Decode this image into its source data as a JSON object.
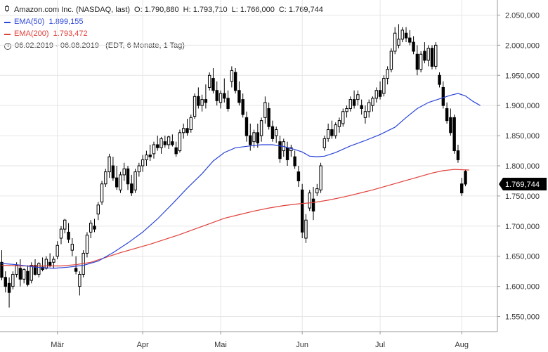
{
  "header": {
    "title": "Amazon.com Inc. (NASDAQ, last)",
    "ohlc": [
      {
        "label": "O:",
        "value": "1.790,880"
      },
      {
        "label": "H:",
        "value": "1.793,710"
      },
      {
        "label": "L:",
        "value": "1.766,000"
      },
      {
        "label": "C:",
        "value": "1.769,744"
      }
    ],
    "ema50_label": "EMA(50)",
    "ema50_value": "1.899,155",
    "ema200_label": "EMA(200)",
    "ema200_value": "1.793,472",
    "range": "06.02.2019 - 06.08.2019",
    "range_note": "(EDT, 6 Monate, 1 Tag)"
  },
  "colors": {
    "ema50": "#2b45d8",
    "ema200": "#e0403a",
    "candle": "#000000",
    "grid": "#e6e6e6",
    "last_price_tag": "#000000"
  },
  "chart_data": {
    "type": "candlestick",
    "title": "Amazon.com Inc. (NASDAQ, last)",
    "ylim": [
      1525,
      2075
    ],
    "y_ticks": [
      {
        "value": 1550,
        "label": "1.550,000"
      },
      {
        "value": 1600,
        "label": "1.600,000"
      },
      {
        "value": 1650,
        "label": "1.650,000"
      },
      {
        "value": 1700,
        "label": "1.700,000"
      },
      {
        "value": 1750,
        "label": "1.750,000"
      },
      {
        "value": 1800,
        "label": "1.800,000"
      },
      {
        "value": 1850,
        "label": "1.850,000"
      },
      {
        "value": 1900,
        "label": "1.900,000"
      },
      {
        "value": 1950,
        "label": "1.950,000"
      },
      {
        "value": 2000,
        "label": "2.000,000"
      },
      {
        "value": 2050,
        "label": "2.050,000"
      }
    ],
    "x_ticks": [
      {
        "index": 15,
        "label": "Mär"
      },
      {
        "index": 38,
        "label": "Apr"
      },
      {
        "index": 59,
        "label": "Mai"
      },
      {
        "index": 81,
        "label": "Jun"
      },
      {
        "index": 102,
        "label": "Jul"
      },
      {
        "index": 124,
        "label": "Aug"
      }
    ],
    "last_price": {
      "value": 1769.744,
      "label": "1.769,744"
    },
    "candles": [
      [
        1640,
        1660,
        1610,
        1615
      ],
      [
        1615,
        1625,
        1590,
        1600
      ],
      [
        1605,
        1615,
        1565,
        1590
      ],
      [
        1600,
        1625,
        1595,
        1620
      ],
      [
        1620,
        1640,
        1615,
        1635
      ],
      [
        1630,
        1645,
        1600,
        1612
      ],
      [
        1612,
        1630,
        1605,
        1628
      ],
      [
        1625,
        1635,
        1600,
        1603
      ],
      [
        1610,
        1640,
        1605,
        1635
      ],
      [
        1635,
        1645,
        1618,
        1620
      ],
      [
        1620,
        1640,
        1615,
        1638
      ],
      [
        1632,
        1648,
        1625,
        1628
      ],
      [
        1630,
        1650,
        1628,
        1645
      ],
      [
        1640,
        1655,
        1632,
        1635
      ],
      [
        1640,
        1650,
        1630,
        1645
      ],
      [
        1650,
        1675,
        1645,
        1668
      ],
      [
        1680,
        1700,
        1670,
        1695
      ],
      [
        1695,
        1712,
        1688,
        1710
      ],
      [
        1690,
        1705,
        1672,
        1678
      ],
      [
        1660,
        1680,
        1650,
        1670
      ],
      [
        1630,
        1650,
        1620,
        1625
      ],
      [
        1600,
        1625,
        1585,
        1620
      ],
      [
        1620,
        1660,
        1615,
        1655
      ],
      [
        1655,
        1690,
        1648,
        1685
      ],
      [
        1690,
        1710,
        1680,
        1705
      ],
      [
        1700,
        1712,
        1690,
        1695
      ],
      [
        1720,
        1740,
        1710,
        1735
      ],
      [
        1740,
        1775,
        1735,
        1770
      ],
      [
        1770,
        1795,
        1765,
        1790
      ],
      [
        1790,
        1820,
        1780,
        1815
      ],
      [
        1800,
        1815,
        1775,
        1780
      ],
      [
        1780,
        1800,
        1760,
        1765
      ],
      [
        1760,
        1790,
        1755,
        1785
      ],
      [
        1785,
        1805,
        1775,
        1795
      ],
      [
        1795,
        1800,
        1760,
        1770
      ],
      [
        1770,
        1785,
        1750,
        1755
      ],
      [
        1760,
        1795,
        1755,
        1790
      ],
      [
        1790,
        1805,
        1782,
        1800
      ],
      [
        1800,
        1818,
        1790,
        1810
      ],
      [
        1810,
        1825,
        1800,
        1818
      ],
      [
        1818,
        1835,
        1808,
        1815
      ],
      [
        1820,
        1840,
        1812,
        1835
      ],
      [
        1835,
        1850,
        1825,
        1830
      ],
      [
        1830,
        1848,
        1820,
        1845
      ],
      [
        1840,
        1850,
        1830,
        1835
      ],
      [
        1835,
        1850,
        1828,
        1848
      ],
      [
        1840,
        1852,
        1832,
        1835
      ],
      [
        1830,
        1840,
        1815,
        1820
      ],
      [
        1825,
        1860,
        1822,
        1855
      ],
      [
        1855,
        1870,
        1845,
        1862
      ],
      [
        1862,
        1878,
        1850,
        1855
      ],
      [
        1860,
        1885,
        1855,
        1880
      ],
      [
        1882,
        1920,
        1878,
        1915
      ],
      [
        1915,
        1930,
        1895,
        1900
      ],
      [
        1900,
        1918,
        1890,
        1910
      ],
      [
        1910,
        1935,
        1895,
        1905
      ],
      [
        1930,
        1955,
        1925,
        1950
      ],
      [
        1945,
        1962,
        1920,
        1925
      ],
      [
        1925,
        1940,
        1900,
        1908
      ],
      [
        1905,
        1925,
        1895,
        1920
      ],
      [
        1920,
        1945,
        1905,
        1912
      ],
      [
        1912,
        1925,
        1890,
        1895
      ],
      [
        1940,
        1965,
        1930,
        1958
      ],
      [
        1955,
        1962,
        1920,
        1925
      ],
      [
        1925,
        1940,
        1900,
        1905
      ],
      [
        1910,
        1920,
        1880,
        1885
      ],
      [
        1880,
        1890,
        1840,
        1850
      ],
      [
        1850,
        1870,
        1825,
        1835
      ],
      [
        1840,
        1860,
        1830,
        1855
      ],
      [
        1855,
        1870,
        1830,
        1838
      ],
      [
        1850,
        1880,
        1840,
        1875
      ],
      [
        1880,
        1915,
        1870,
        1905
      ],
      [
        1895,
        1905,
        1860,
        1865
      ],
      [
        1865,
        1875,
        1840,
        1845
      ],
      [
        1850,
        1865,
        1838,
        1860
      ],
      [
        1840,
        1850,
        1805,
        1812
      ],
      [
        1825,
        1845,
        1815,
        1840
      ],
      [
        1830,
        1840,
        1800,
        1810
      ],
      [
        1825,
        1835,
        1815,
        1830
      ],
      [
        1815,
        1825,
        1795,
        1800
      ],
      [
        1790,
        1800,
        1765,
        1775
      ],
      [
        1760,
        1770,
        1680,
        1690
      ],
      [
        1680,
        1720,
        1672,
        1710
      ],
      [
        1730,
        1760,
        1725,
        1755
      ],
      [
        1745,
        1765,
        1710,
        1725
      ],
      [
        1755,
        1770,
        1750,
        1762
      ],
      [
        1760,
        1805,
        1755,
        1800
      ],
      [
        1830,
        1850,
        1825,
        1845
      ],
      [
        1845,
        1870,
        1840,
        1860
      ],
      [
        1860,
        1875,
        1845,
        1850
      ],
      [
        1850,
        1872,
        1845,
        1868
      ],
      [
        1865,
        1880,
        1855,
        1875
      ],
      [
        1870,
        1895,
        1865,
        1890
      ],
      [
        1890,
        1900,
        1880,
        1895
      ],
      [
        1895,
        1915,
        1890,
        1910
      ],
      [
        1910,
        1925,
        1895,
        1900
      ],
      [
        1910,
        1925,
        1900,
        1918
      ],
      [
        1900,
        1910,
        1885,
        1895
      ],
      [
        1880,
        1900,
        1870,
        1890
      ],
      [
        1890,
        1910,
        1880,
        1905
      ],
      [
        1900,
        1915,
        1890,
        1912
      ],
      [
        1912,
        1930,
        1905,
        1925
      ],
      [
        1925,
        1940,
        1910,
        1915
      ],
      [
        1920,
        1950,
        1915,
        1945
      ],
      [
        1945,
        1965,
        1935,
        1960
      ],
      [
        1960,
        1995,
        1955,
        1990
      ],
      [
        1990,
        2030,
        1985,
        2020
      ],
      [
        2000,
        2035,
        1995,
        2010
      ],
      [
        2010,
        2030,
        2005,
        2025
      ],
      [
        2020,
        2030,
        2005,
        2012
      ],
      [
        2012,
        2025,
        2000,
        2005
      ],
      [
        2005,
        2015,
        1985,
        1990
      ],
      [
        1985,
        2000,
        1950,
        1960
      ],
      [
        1960,
        1990,
        1955,
        1985
      ],
      [
        1990,
        2005,
        1970,
        1975
      ],
      [
        1975,
        2000,
        1965,
        1995
      ],
      [
        1995,
        2000,
        1960,
        1965
      ],
      [
        1965,
        2005,
        1960,
        2000
      ],
      [
        1950,
        1955,
        1930,
        1935
      ],
      [
        1930,
        1940,
        1895,
        1900
      ],
      [
        1895,
        1905,
        1870,
        1875
      ],
      [
        1880,
        1895,
        1850,
        1855
      ],
      [
        1880,
        1885,
        1820,
        1825
      ],
      [
        1825,
        1835,
        1805,
        1810
      ],
      [
        1770,
        1780,
        1750,
        1755
      ],
      [
        1790.88,
        1793.71,
        1766,
        1769.744
      ]
    ],
    "ema50": [
      [
        0,
        1638
      ],
      [
        4,
        1636
      ],
      [
        9,
        1632
      ],
      [
        14,
        1630
      ],
      [
        18,
        1632
      ],
      [
        22,
        1635
      ],
      [
        26,
        1642
      ],
      [
        30,
        1656
      ],
      [
        34,
        1672
      ],
      [
        38,
        1690
      ],
      [
        42,
        1712
      ],
      [
        46,
        1737
      ],
      [
        50,
        1763
      ],
      [
        54,
        1787
      ],
      [
        57,
        1808
      ],
      [
        60,
        1822
      ],
      [
        63,
        1830
      ],
      [
        67,
        1833
      ],
      [
        70,
        1835
      ],
      [
        73,
        1835
      ],
      [
        76,
        1832
      ],
      [
        79,
        1827
      ],
      [
        81,
        1823
      ],
      [
        83,
        1816
      ],
      [
        85,
        1815
      ],
      [
        87,
        1816
      ],
      [
        90,
        1822
      ],
      [
        94,
        1833
      ],
      [
        98,
        1842
      ],
      [
        102,
        1852
      ],
      [
        106,
        1864
      ],
      [
        109,
        1880
      ],
      [
        112,
        1895
      ],
      [
        115,
        1905
      ],
      [
        118,
        1911
      ],
      [
        121,
        1917
      ],
      [
        123,
        1920
      ],
      [
        125,
        1916
      ],
      [
        127,
        1907
      ],
      [
        129,
        1900
      ]
    ],
    "ema200": [
      [
        0,
        1635
      ],
      [
        5,
        1634
      ],
      [
        10,
        1634
      ],
      [
        16,
        1634
      ],
      [
        20,
        1636
      ],
      [
        24,
        1640
      ],
      [
        28,
        1648
      ],
      [
        32,
        1656
      ],
      [
        36,
        1663
      ],
      [
        40,
        1670
      ],
      [
        44,
        1678
      ],
      [
        48,
        1686
      ],
      [
        52,
        1695
      ],
      [
        56,
        1704
      ],
      [
        60,
        1713
      ],
      [
        64,
        1719
      ],
      [
        68,
        1725
      ],
      [
        72,
        1730
      ],
      [
        76,
        1734
      ],
      [
        80,
        1737
      ],
      [
        84,
        1739
      ],
      [
        88,
        1743
      ],
      [
        92,
        1748
      ],
      [
        96,
        1754
      ],
      [
        100,
        1760
      ],
      [
        104,
        1767
      ],
      [
        108,
        1774
      ],
      [
        112,
        1781
      ],
      [
        116,
        1788
      ],
      [
        119,
        1792
      ],
      [
        122,
        1794
      ],
      [
        126,
        1793
      ]
    ]
  }
}
